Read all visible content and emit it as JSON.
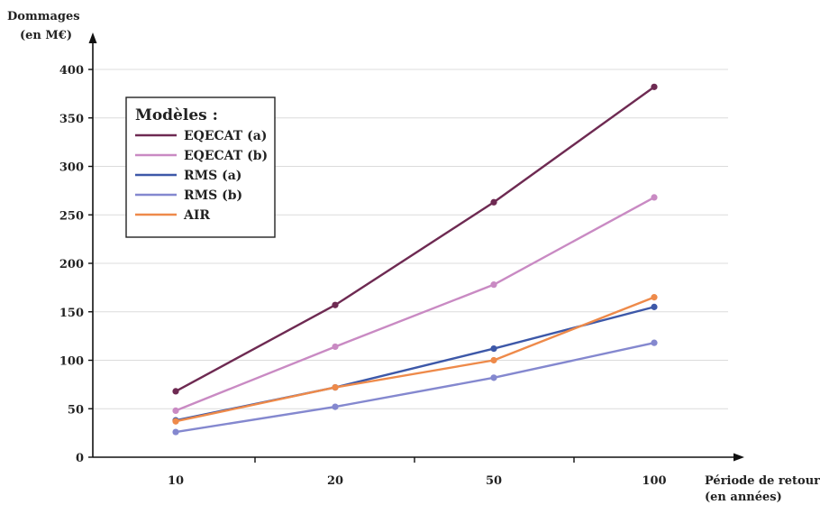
{
  "chart_data": {
    "type": "line",
    "ylabel_line1": "Dommages",
    "ylabel_line2": "(en M€)",
    "xlabel_line1": "Période de retour",
    "xlabel_line2": "(en années)",
    "categories": [
      "10",
      "20",
      "50",
      "100"
    ],
    "y_ticks": [
      0,
      50,
      100,
      150,
      200,
      250,
      300,
      350,
      400
    ],
    "ylim": [
      0,
      400
    ],
    "grid": true,
    "legend": {
      "title": "Modèles :",
      "placement": "top-left"
    },
    "series": [
      {
        "name": "EQECAT (a)",
        "color": "#6e2a52",
        "values": [
          68,
          157,
          263,
          382
        ]
      },
      {
        "name": "EQECAT (b)",
        "color": "#c98ac3",
        "values": [
          48,
          114,
          178,
          268
        ]
      },
      {
        "name": "RMS (a)",
        "color": "#3d58a8",
        "values": [
          38,
          72,
          112,
          155
        ]
      },
      {
        "name": "RMS (b)",
        "color": "#8488cf",
        "values": [
          26,
          52,
          82,
          118
        ]
      },
      {
        "name": "AIR",
        "color": "#ee8a4a",
        "values": [
          37,
          72,
          100,
          165
        ]
      }
    ]
  }
}
